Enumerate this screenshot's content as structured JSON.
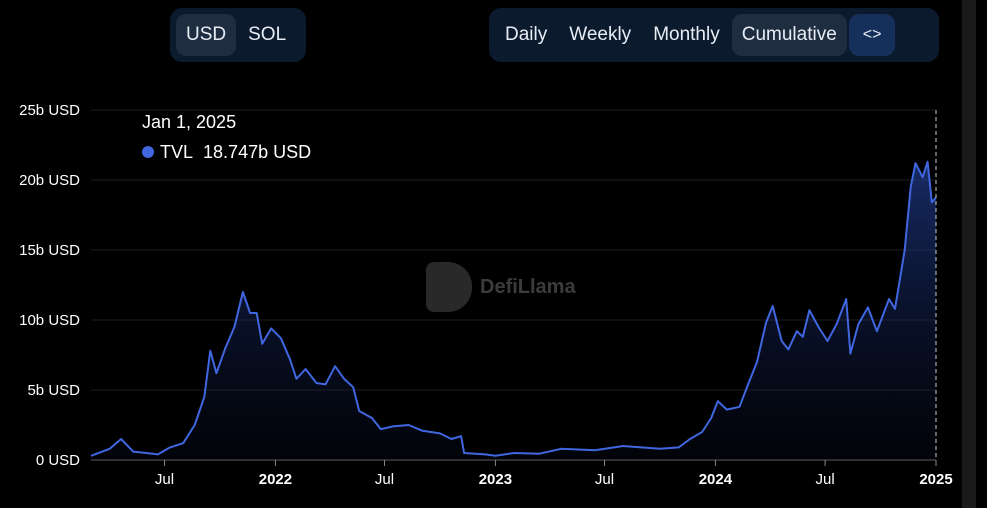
{
  "currency_toggle": {
    "options": [
      {
        "label": "USD",
        "active": true
      },
      {
        "label": "SOL",
        "active": false
      }
    ]
  },
  "period_toggle": {
    "options": [
      {
        "label": "Daily",
        "active": false
      },
      {
        "label": "Weekly",
        "active": false
      },
      {
        "label": "Monthly",
        "active": false
      },
      {
        "label": "Cumulative",
        "active": true
      }
    ],
    "embed_icon": "code-brackets-icon",
    "embed_label": "<>"
  },
  "tooltip": {
    "date": "Jan 1, 2025",
    "series": "TVL",
    "value": "18.747b USD"
  },
  "watermark": "DefiLlama",
  "colors": {
    "line": "#4066e0",
    "background": "#000000",
    "button_bg": "#0c1a2e"
  },
  "chart_data": {
    "type": "area",
    "ylim": [
      0,
      25
    ],
    "xlim": [
      "2021-03-01",
      "2025-01-01"
    ],
    "y_unit": "b USD",
    "yticks": [
      "0 USD",
      "5b USD",
      "10b USD",
      "15b USD",
      "20b USD",
      "25b USD"
    ],
    "xticks": [
      {
        "date": "2021-07-01",
        "label": "Jul"
      },
      {
        "date": "2022-01-01",
        "label": "2022"
      },
      {
        "date": "2022-07-01",
        "label": "Jul"
      },
      {
        "date": "2023-01-01",
        "label": "2023"
      },
      {
        "date": "2023-07-01",
        "label": "Jul"
      },
      {
        "date": "2024-01-01",
        "label": "2024"
      },
      {
        "date": "2024-07-01",
        "label": "Jul"
      },
      {
        "date": "2025-01-01",
        "label": "2025"
      }
    ],
    "grid": true,
    "series": [
      {
        "name": "TVL",
        "points": [
          [
            "2021-03-01",
            0.3
          ],
          [
            "2021-04-01",
            0.8
          ],
          [
            "2021-04-20",
            1.5
          ],
          [
            "2021-05-10",
            0.6
          ],
          [
            "2021-06-01",
            0.5
          ],
          [
            "2021-06-20",
            0.4
          ],
          [
            "2021-07-10",
            0.9
          ],
          [
            "2021-08-01",
            1.2
          ],
          [
            "2021-08-20",
            2.5
          ],
          [
            "2021-09-05",
            4.5
          ],
          [
            "2021-09-15",
            7.8
          ],
          [
            "2021-09-25",
            6.2
          ],
          [
            "2021-10-10",
            8.0
          ],
          [
            "2021-10-25",
            9.5
          ],
          [
            "2021-11-08",
            12.0
          ],
          [
            "2021-11-20",
            10.5
          ],
          [
            "2021-12-01",
            10.5
          ],
          [
            "2021-12-10",
            8.3
          ],
          [
            "2021-12-25",
            9.4
          ],
          [
            "2022-01-10",
            8.7
          ],
          [
            "2022-01-25",
            7.2
          ],
          [
            "2022-02-05",
            5.8
          ],
          [
            "2022-02-20",
            6.5
          ],
          [
            "2022-03-10",
            5.5
          ],
          [
            "2022-03-25",
            5.4
          ],
          [
            "2022-04-10",
            6.7
          ],
          [
            "2022-04-25",
            5.8
          ],
          [
            "2022-05-10",
            5.2
          ],
          [
            "2022-05-20",
            3.5
          ],
          [
            "2022-06-10",
            3.0
          ],
          [
            "2022-06-25",
            2.2
          ],
          [
            "2022-07-15",
            2.4
          ],
          [
            "2022-08-10",
            2.5
          ],
          [
            "2022-09-01",
            2.1
          ],
          [
            "2022-10-01",
            1.9
          ],
          [
            "2022-10-20",
            1.5
          ],
          [
            "2022-11-05",
            1.7
          ],
          [
            "2022-11-10",
            0.5
          ],
          [
            "2022-12-15",
            0.4
          ],
          [
            "2023-01-01",
            0.3
          ],
          [
            "2023-02-01",
            0.5
          ],
          [
            "2023-03-15",
            0.45
          ],
          [
            "2023-04-20",
            0.8
          ],
          [
            "2023-06-15",
            0.7
          ],
          [
            "2023-08-01",
            1.0
          ],
          [
            "2023-10-01",
            0.8
          ],
          [
            "2023-11-01",
            0.9
          ],
          [
            "2023-11-20",
            1.5
          ],
          [
            "2023-12-10",
            2.0
          ],
          [
            "2023-12-25",
            3.0
          ],
          [
            "2024-01-05",
            4.2
          ],
          [
            "2024-01-20",
            3.6
          ],
          [
            "2024-02-10",
            3.8
          ],
          [
            "2024-02-25",
            5.5
          ],
          [
            "2024-03-10",
            7.0
          ],
          [
            "2024-03-25",
            9.8
          ],
          [
            "2024-04-05",
            11.0
          ],
          [
            "2024-04-20",
            8.5
          ],
          [
            "2024-05-01",
            7.9
          ],
          [
            "2024-05-15",
            9.2
          ],
          [
            "2024-05-25",
            8.8
          ],
          [
            "2024-06-05",
            10.7
          ],
          [
            "2024-06-20",
            9.5
          ],
          [
            "2024-07-05",
            8.5
          ],
          [
            "2024-07-20",
            9.7
          ],
          [
            "2024-08-05",
            11.5
          ],
          [
            "2024-08-12",
            7.6
          ],
          [
            "2024-08-25",
            9.7
          ],
          [
            "2024-09-10",
            10.9
          ],
          [
            "2024-09-25",
            9.2
          ],
          [
            "2024-10-15",
            11.5
          ],
          [
            "2024-10-25",
            10.8
          ],
          [
            "2024-11-10",
            15.0
          ],
          [
            "2024-11-20",
            19.5
          ],
          [
            "2024-11-28",
            21.2
          ],
          [
            "2024-12-10",
            20.2
          ],
          [
            "2024-12-18",
            21.3
          ],
          [
            "2024-12-25",
            18.4
          ],
          [
            "2025-01-01",
            18.75
          ]
        ]
      }
    ]
  }
}
